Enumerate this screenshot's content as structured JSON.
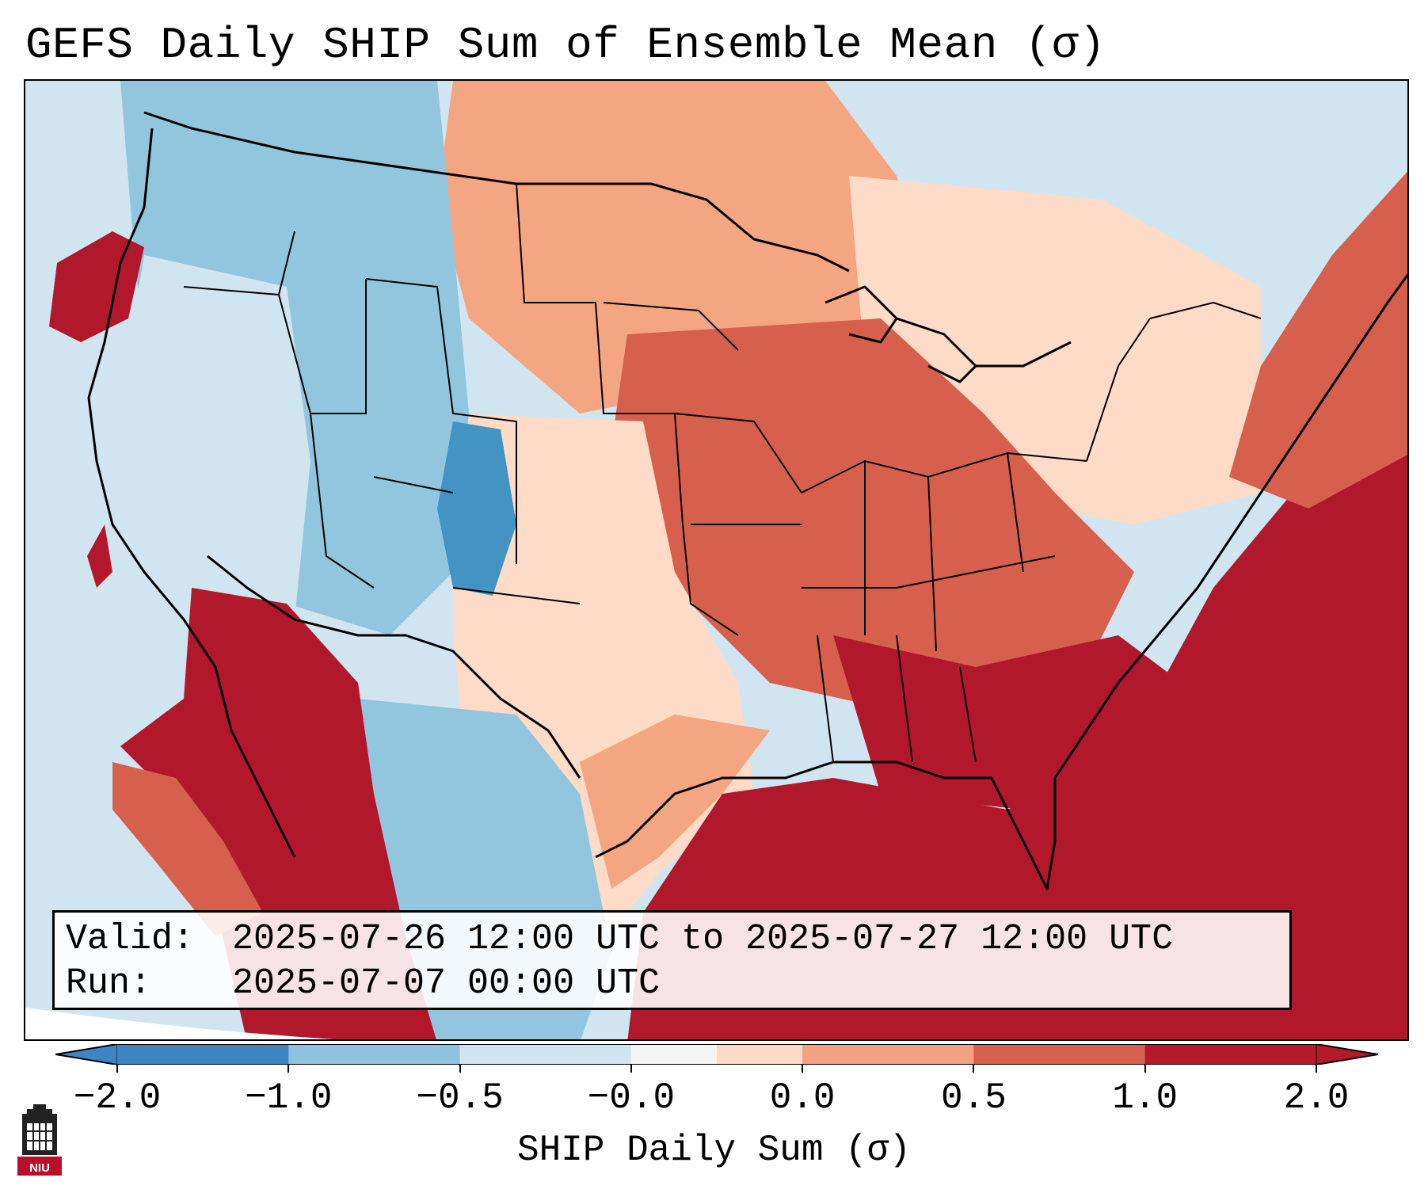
{
  "title": "GEFS Daily SHIP Sum of Ensemble Mean (σ)",
  "info": {
    "valid_label": "Valid:",
    "valid_value": "2025-07-26 12:00 UTC to 2025-07-27 12:00 UTC",
    "run_label": "Run:",
    "run_value": "2025-07-07 00:00 UTC"
  },
  "colorbar": {
    "label": "SHIP Daily Sum (σ)",
    "ticks": [
      "−2.0",
      "−1.0",
      "−0.5",
      "−0.0",
      "0.0",
      "0.5",
      "1.0",
      "2.0"
    ],
    "colors": [
      "#3d85c3",
      "#8ec1dd",
      "#d0e4f0",
      "#f5f5f5",
      "#fbdac7",
      "#f2a183",
      "#d6604d",
      "#b31a2c"
    ],
    "extend": "both"
  },
  "logo": {
    "text": "NIU",
    "color": "#b8102a"
  },
  "map": {
    "ocean_color": "#d1e5f0",
    "land_color": "#cfe3ef",
    "region_fills": [
      {
        "name": "northern-plains-warm",
        "color": "#f4a582"
      },
      {
        "name": "great-lakes-midwest-warm",
        "color": "#d6604d"
      },
      {
        "name": "southeast-hot",
        "color": "#b2182b"
      },
      {
        "name": "gulf-atlantic-hot",
        "color": "#b2182b"
      },
      {
        "name": "intermountain-west-cool",
        "color": "#92c5de"
      },
      {
        "name": "rockies-core-cool",
        "color": "#4393c3"
      },
      {
        "name": "southern-plains-mild",
        "color": "#fddbc7"
      },
      {
        "name": "mexico-plateau-cool",
        "color": "#92c5de"
      },
      {
        "name": "baja-sonora-hot",
        "color": "#b2182b"
      },
      {
        "name": "west-coast-cool",
        "color": "#d1e5f0"
      },
      {
        "name": "northeast-mild",
        "color": "#fddbc7"
      }
    ]
  }
}
